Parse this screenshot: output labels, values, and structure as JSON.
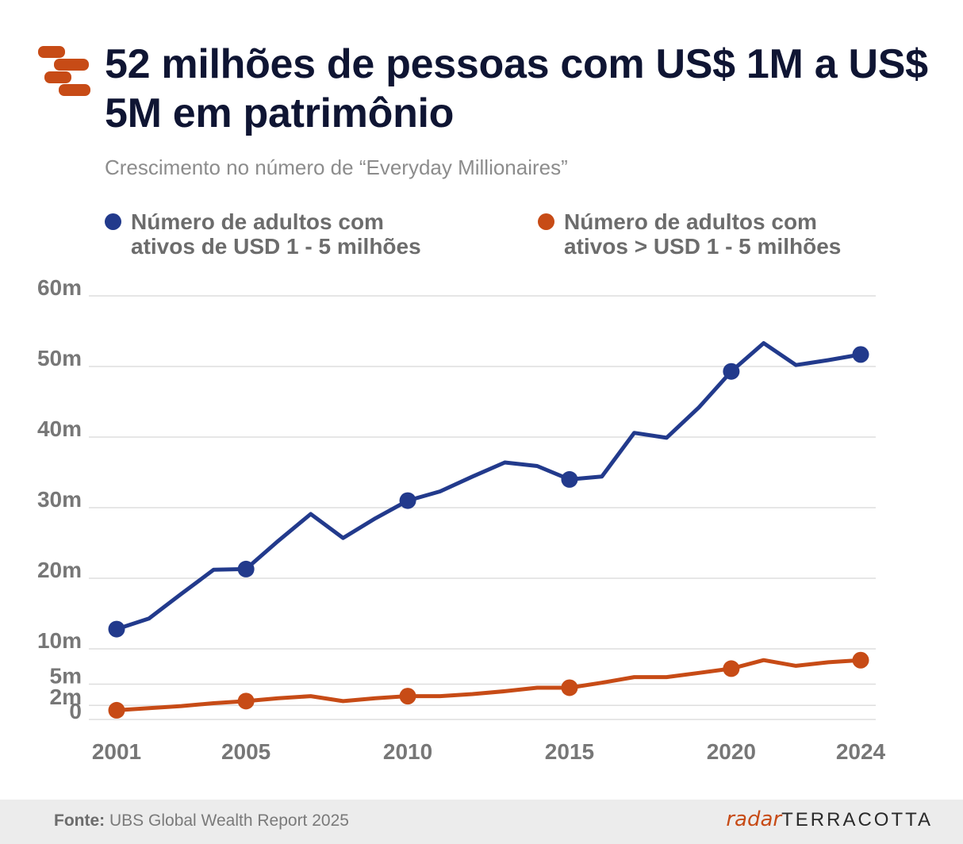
{
  "header": {
    "title": "52 milhões de pessoas com US$ 1M a US$ 5M em patrimônio",
    "subtitle": "Crescimento no número de “Everyday Millionaires”"
  },
  "colors": {
    "blue": "#223a8c",
    "orange": "#c74b16",
    "grid": "#dedede",
    "axis_text": "#777777"
  },
  "legend": {
    "blue_label": "Número de adultos com\nativos de USD 1 - 5 milhões",
    "orange_label": "Número de adultos com\nativos > USD 1 - 5 milhões"
  },
  "chart_data": {
    "type": "line",
    "title": "52 milhões de pessoas com US$ 1M a US$ 5M em patrimônio",
    "subtitle": "Crescimento no número de “Everyday Millionaires”",
    "xlabel": "",
    "ylabel": "",
    "xlim": [
      2001,
      2024
    ],
    "ylim": [
      0,
      60
    ],
    "y_ticks": [
      0,
      2,
      5,
      10,
      20,
      30,
      40,
      50,
      60
    ],
    "y_tick_labels": [
      "0",
      "2m",
      "5m",
      "10m",
      "20m",
      "30m",
      "40m",
      "50m",
      "60m"
    ],
    "x_ticks": [
      2001,
      2005,
      2010,
      2015,
      2020,
      2024
    ],
    "x_tick_labels": [
      "2001",
      "2005",
      "2010",
      "2015",
      "2020",
      "2024"
    ],
    "grid": true,
    "legend_position": "top",
    "series": [
      {
        "name": "Número de adultos com ativos de USD 1 - 5 milhões",
        "color": "#223a8c",
        "x": [
          2001,
          2002,
          2003,
          2004,
          2005,
          2006,
          2007,
          2008,
          2009,
          2010,
          2011,
          2012,
          2013,
          2014,
          2015,
          2016,
          2017,
          2018,
          2019,
          2020,
          2021,
          2022,
          2023,
          2024
        ],
        "values": [
          12.8,
          14.3,
          17.8,
          21.2,
          21.3,
          25.3,
          29.1,
          25.7,
          28.5,
          31.0,
          32.3,
          34.4,
          36.4,
          35.9,
          34.0,
          34.4,
          40.6,
          39.9,
          44.2,
          49.3,
          53.3,
          50.2,
          50.9,
          51.7
        ],
        "markers_at": [
          2001,
          2005,
          2010,
          2015,
          2020,
          2024
        ]
      },
      {
        "name": "Número de adultos com ativos > USD 1 - 5 milhões",
        "color": "#c74b16",
        "x": [
          2001,
          2002,
          2003,
          2004,
          2005,
          2006,
          2007,
          2008,
          2009,
          2010,
          2011,
          2012,
          2013,
          2014,
          2015,
          2016,
          2017,
          2018,
          2019,
          2020,
          2021,
          2022,
          2023,
          2024
        ],
        "values": [
          1.3,
          1.6,
          1.9,
          2.3,
          2.6,
          3.0,
          3.3,
          2.6,
          3.0,
          3.3,
          3.3,
          3.6,
          4.0,
          4.5,
          4.5,
          5.2,
          6.0,
          6.0,
          6.6,
          7.2,
          8.4,
          7.6,
          8.1,
          8.4
        ],
        "markers_at": [
          2001,
          2005,
          2010,
          2015,
          2020,
          2024
        ]
      }
    ]
  },
  "footer": {
    "source_label": "Fonte:",
    "source_text": "UBS Global Wealth Report 2025",
    "brand_radar": "radar",
    "brand_terracotta": "TERRACOTTA"
  }
}
